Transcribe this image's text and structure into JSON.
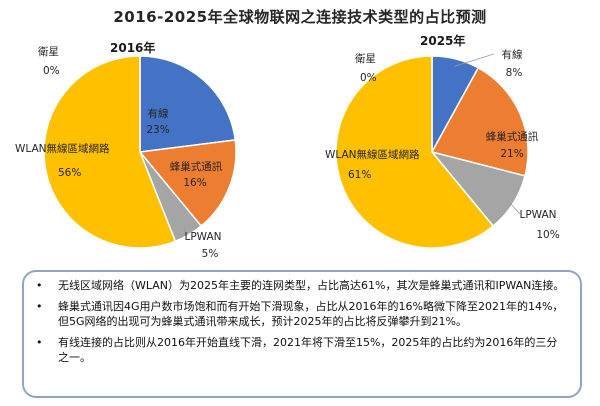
{
  "title": "2016-2025年全球物联网之连接技术类型的占比预测",
  "chart_data": [
    {
      "type": "pie",
      "title": "2016年",
      "slices": [
        {
          "label": "有線",
          "value": 23,
          "display": "23%",
          "color": "#4472c4"
        },
        {
          "label": "蜂巢式通訊",
          "value": 16,
          "display": "16%",
          "color": "#ed7d31"
        },
        {
          "label": "LPWAN",
          "value": 5,
          "display": "5%",
          "color": "#a5a5a5"
        },
        {
          "label": "WLAN無線區域網路",
          "value": 56,
          "display": "56%",
          "color": "#ffc000"
        },
        {
          "label": "衛星",
          "value": 0,
          "display": "0%",
          "color": "#5b9bd5"
        }
      ]
    },
    {
      "type": "pie",
      "title": "2025年",
      "slices": [
        {
          "label": "有線",
          "value": 8,
          "display": "8%",
          "color": "#4472c4"
        },
        {
          "label": "蜂巢式通訊",
          "value": 21,
          "display": "21%",
          "color": "#ed7d31"
        },
        {
          "label": "LPWAN",
          "value": 10,
          "display": "10%",
          "color": "#a5a5a5"
        },
        {
          "label": "WLAN無線區域網路",
          "value": 61,
          "display": "61%",
          "color": "#ffc000"
        },
        {
          "label": "衛星",
          "value": 0,
          "display": "0%",
          "color": "#5b9bd5"
        }
      ]
    }
  ],
  "notes": [
    "无线区域网络（WLAN）为2025年主要的连网类型，占比高达61%，其次是蜂巢式通讯和IPWAN连接。",
    "蜂巢式通讯因4G用户数市场饱和而有开始下滑现象，占比从2016年的16%略微下降至2021年的14%，但5G网络的出现可为蜂巢式通讯带来成长，预计2025年的占比将反弹攀升到21%。",
    "有线连接的占比则从2016年开始直线下滑，2021年将下滑至15%，2025年的占比约为2016年的三分之一。"
  ],
  "bullet": "•"
}
